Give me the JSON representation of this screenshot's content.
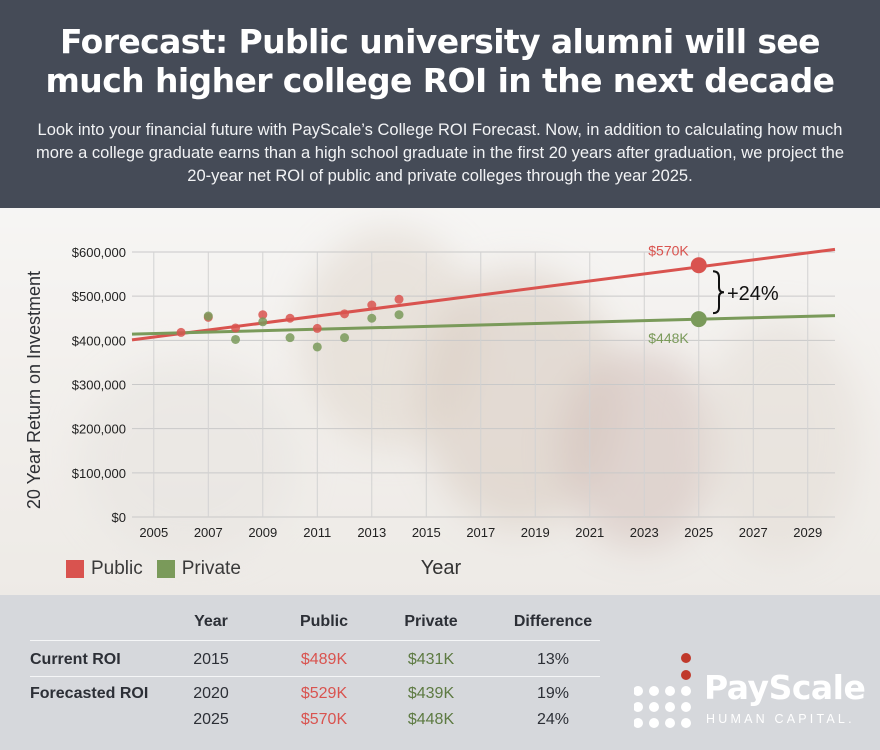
{
  "header": {
    "title": "Forecast: Public university alumni will see much higher college ROI in the next decade",
    "subtitle": "Look into your financial future with PayScale’s College ROI Forecast. Now, in addition to calculating how much more a college graduate earns than a high school graduate in the first 20 years after graduation, we project the 20-year net ROI of public and private colleges through the year 2025."
  },
  "chart_data": {
    "type": "scatter",
    "ylabel": "20 Year Return on Investment",
    "xlabel": "Year",
    "xlim": [
      2004.2,
      2030.0
    ],
    "ylim": [
      0,
      600000
    ],
    "x_ticks": [
      2005,
      2007,
      2009,
      2011,
      2013,
      2015,
      2017,
      2019,
      2021,
      2023,
      2025,
      2027,
      2029
    ],
    "y_ticks": [
      0,
      100000,
      200000,
      300000,
      400000,
      500000,
      600000
    ],
    "y_tick_labels": [
      "$0",
      "$100,000",
      "$200,000",
      "$300,000",
      "$400,000",
      "$500,000",
      "$600,000"
    ],
    "grid": true,
    "legend_position": "bottom-left",
    "series": [
      {
        "name": "Public",
        "color": "#d9534f",
        "points": [
          [
            2006,
            418000
          ],
          [
            2007,
            452000
          ],
          [
            2008,
            428000
          ],
          [
            2009,
            458000
          ],
          [
            2010,
            450000
          ],
          [
            2011,
            427000
          ],
          [
            2012,
            460000
          ],
          [
            2013,
            480000
          ],
          [
            2014,
            493000
          ]
        ],
        "trend": [
          [
            2004.2,
            401000
          ],
          [
            2030.0,
            606000
          ]
        ],
        "forecast_point": [
          2025,
          570000
        ],
        "forecast_label": "$570K"
      },
      {
        "name": "Private",
        "color": "#7a9a5a",
        "points": [
          [
            2007,
            455000
          ],
          [
            2008,
            402000
          ],
          [
            2009,
            442000
          ],
          [
            2010,
            406000
          ],
          [
            2011,
            385000
          ],
          [
            2012,
            406000
          ],
          [
            2013,
            450000
          ],
          [
            2014,
            458000
          ]
        ],
        "trend": [
          [
            2004.2,
            414000
          ],
          [
            2030.0,
            456000
          ]
        ],
        "forecast_point": [
          2025,
          448000
        ],
        "forecast_label": "$448K"
      }
    ],
    "annotation": "+24%"
  },
  "legend": [
    {
      "label": "Public",
      "color": "#d9534f"
    },
    {
      "label": "Private",
      "color": "#7a9a5a"
    }
  ],
  "table": {
    "headers": {
      "year": "Year",
      "public": "Public",
      "private": "Private",
      "difference": "Difference"
    },
    "rows": [
      {
        "label": "Current ROI",
        "year": "2015",
        "public": "$489K",
        "private": "$431K",
        "difference": "13%"
      },
      {
        "label": "Forecasted ROI",
        "year": "2020",
        "public": "$529K",
        "private": "$439K",
        "difference": "19%"
      },
      {
        "label": "",
        "year": "2025",
        "public": "$570K",
        "private": "$448K",
        "difference": "24%"
      }
    ],
    "public_color": "#d9534f",
    "private_color": "#5d7a42"
  },
  "logo": {
    "name": "PayScale",
    "tagline": "HUMAN CAPITAL."
  }
}
